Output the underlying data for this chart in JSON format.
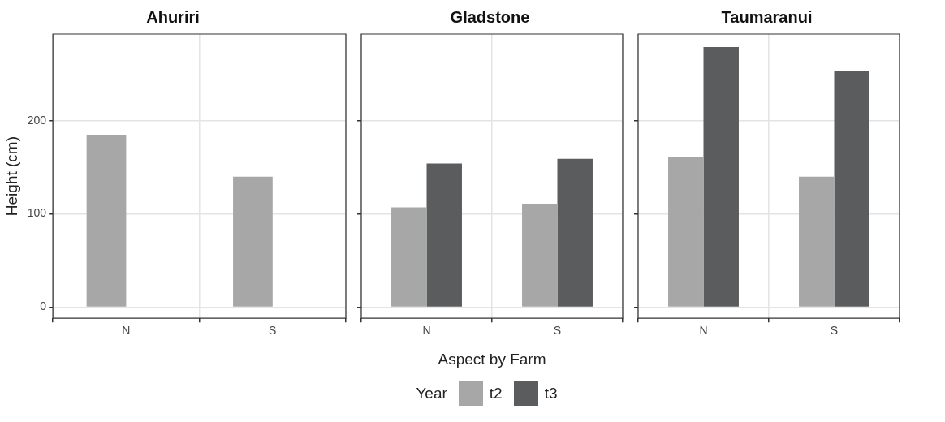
{
  "chart_data": [
    {
      "type": "bar",
      "title": "Ahuriri",
      "ylabel": "Height (cm)",
      "categories": [
        "N",
        "S"
      ],
      "series": [
        {
          "color": "#a6a7a6",
          "values": [
            185,
            140
          ]
        },
        {
          "color": "#5b5c5e",
          "values": [
            null,
            null
          ]
        }
      ],
      "ylim": [
        -12,
        293
      ],
      "yticks": [
        0,
        100,
        200
      ],
      "grid": true,
      "legend": false
    },
    {
      "type": "bar",
      "title": "Gladstone",
      "xlabel": "Aspect by Farm",
      "legend_title": "Year",
      "categories": [
        "N",
        "S"
      ],
      "series": [
        {
          "name": "t2",
          "color": "#a6a7a6",
          "values": [
            107,
            111
          ]
        },
        {
          "name": "t3",
          "color": "#5b5c5e",
          "values": [
            154,
            159
          ]
        }
      ],
      "ylim": [
        -12,
        293
      ],
      "yticks": [
        0,
        100,
        200
      ],
      "grid": true,
      "legend": "bottom",
      "tick_labels": "x"
    },
    {
      "type": "bar",
      "title": "Taumaranui",
      "categories": [
        "N",
        "S"
      ],
      "series": [
        {
          "color": "#a6a7a6",
          "values": [
            161,
            140
          ]
        },
        {
          "color": "#5b5c5e",
          "values": [
            279,
            253
          ]
        }
      ],
      "ylim": [
        -12,
        293
      ],
      "yticks": [
        0,
        100,
        200
      ],
      "grid": true,
      "legend": false,
      "tick_labels": "x"
    }
  ]
}
